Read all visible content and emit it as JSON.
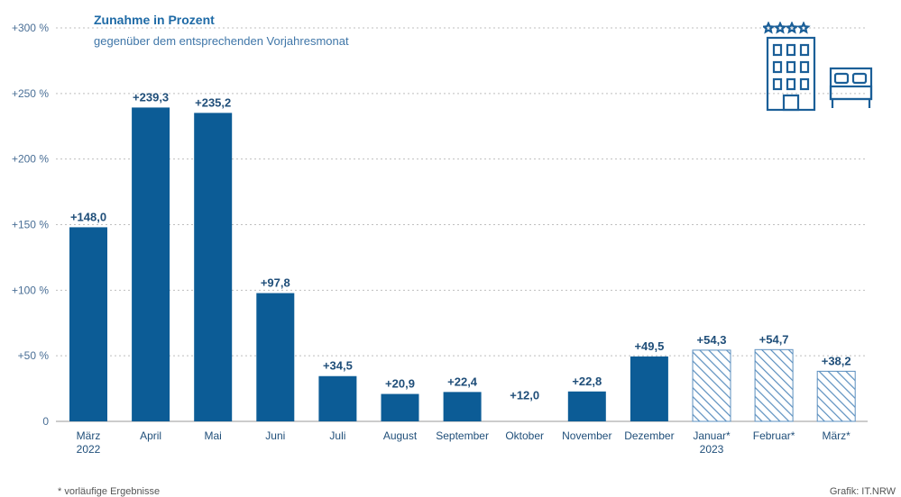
{
  "header": {
    "title": "Zunahme in Prozent",
    "subtitle": "gegenüber dem entsprechenden Vorjahresmonat"
  },
  "footer": {
    "footnote": "* vorläufige Ergebnisse",
    "source": "Grafik: IT.NRW"
  },
  "icon": {
    "name": "hotel-with-bed-icon",
    "stars": 4
  },
  "colors": {
    "bar": "#0c5c96",
    "text": "#1f4e79",
    "grid": "#bfbfbf",
    "axis": "#9a9a9a",
    "hatch": "#5b8fbf"
  },
  "chart_data": {
    "type": "bar",
    "title": "Zunahme in Prozent",
    "subtitle": "gegenüber dem entsprechenden Vorjahresmonat",
    "categories": [
      [
        "März",
        "2022"
      ],
      [
        "April"
      ],
      [
        "Mai"
      ],
      [
        "Juni"
      ],
      [
        "Juli"
      ],
      [
        "August"
      ],
      [
        "September"
      ],
      [
        "Oktober"
      ],
      [
        "November"
      ],
      [
        "Dezember"
      ],
      [
        "Januar*",
        "2023"
      ],
      [
        "Februar*"
      ],
      [
        "März*"
      ]
    ],
    "values": [
      148.0,
      239.3,
      235.2,
      97.8,
      34.5,
      20.9,
      22.4,
      12.0,
      22.8,
      49.5,
      54.3,
      54.7,
      38.2
    ],
    "value_labels": [
      "+148,0",
      "+239,3",
      "+235,2",
      "+97,8",
      "+34,5",
      "+20,9",
      "+22,4",
      "+12,0",
      "+22,8",
      "+49,5",
      "+54,3",
      "+54,7",
      "+38,2"
    ],
    "provisional": [
      false,
      false,
      false,
      false,
      false,
      false,
      false,
      false,
      false,
      false,
      true,
      true,
      true
    ],
    "hidden_bars": [
      7
    ],
    "yticks": [
      0,
      50,
      100,
      150,
      200,
      250,
      300
    ],
    "ytick_labels": [
      "0",
      "+50 %",
      "+100 %",
      "+150 %",
      "+200 %",
      "+250 %",
      "+300 %"
    ],
    "ylim": [
      0,
      300
    ],
    "grid": true,
    "xlabel": "",
    "ylabel": ""
  }
}
